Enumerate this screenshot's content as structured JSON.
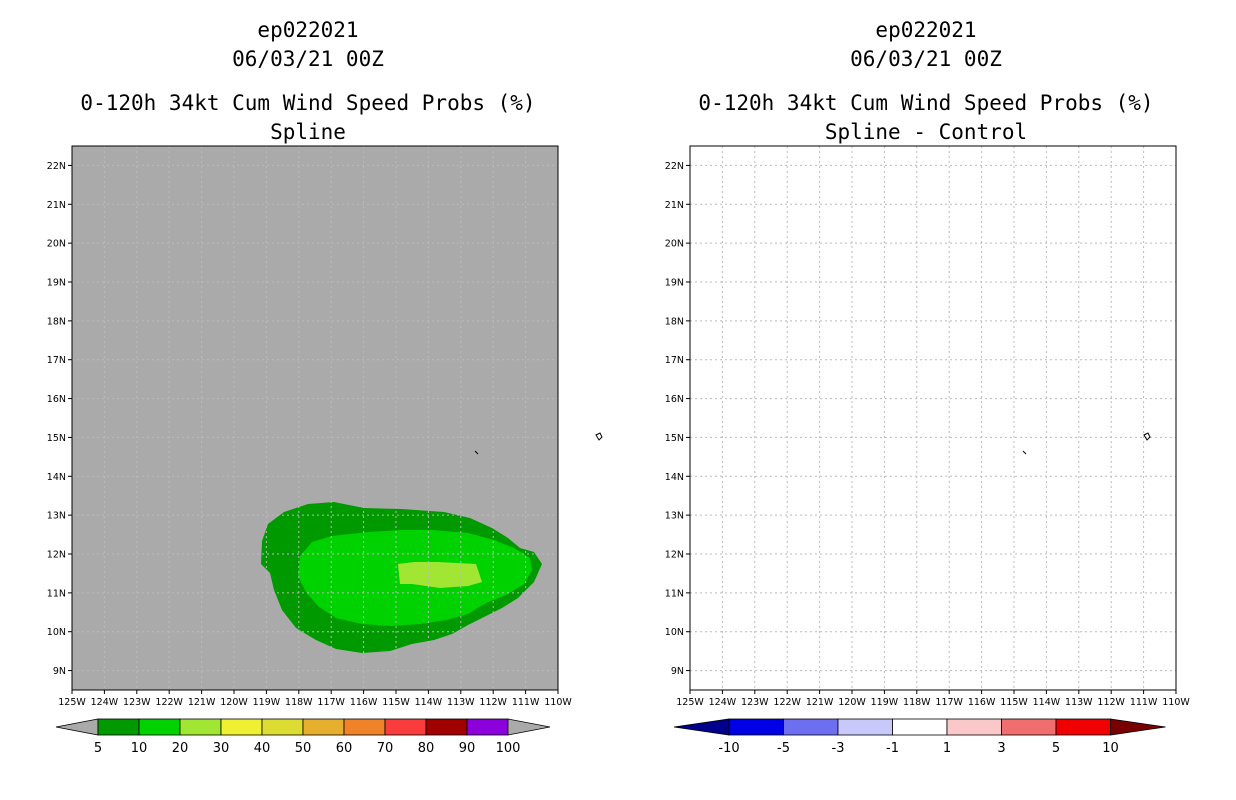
{
  "left_panel": {
    "title_lines": [
      "ep022021",
      "06/03/21 00Z",
      "0-120h 34kt Cum Wind Speed Probs (%)",
      "Spline"
    ]
  },
  "right_panel": {
    "title_lines": [
      "ep022021",
      "06/03/21 00Z",
      "0-120h 34kt Cum Wind Speed Probs (%)",
      "Spline - Control"
    ]
  },
  "map_extent": {
    "lon_west": -125,
    "lon_east": -110,
    "lat_south": 8.5,
    "lat_north": 22.5
  },
  "lat_ticks": [
    "9N",
    "10N",
    "11N",
    "12N",
    "13N",
    "14N",
    "15N",
    "16N",
    "17N",
    "18N",
    "19N",
    "20N",
    "21N",
    "22N"
  ],
  "lat_values": [
    9,
    10,
    11,
    12,
    13,
    14,
    15,
    16,
    17,
    18,
    19,
    20,
    21,
    22
  ],
  "lon_ticks": [
    "125W",
    "124W",
    "123W",
    "122W",
    "121W",
    "120W",
    "119W",
    "118W",
    "117W",
    "116W",
    "115W",
    "114W",
    "113W",
    "112W",
    "111W",
    "110W"
  ],
  "lon_values": [
    -125,
    -124,
    -123,
    -122,
    -121,
    -120,
    -119,
    -118,
    -117,
    -116,
    -115,
    -114,
    -113,
    -112,
    -111,
    -110
  ],
  "colors": {
    "background_grey": "#aaaaaa",
    "contour_5": "#009a00",
    "contour_10": "#00d200",
    "contour_20": "#a0e632"
  },
  "left_colorbar": {
    "colors": [
      "#009a00",
      "#00d200",
      "#a0e632",
      "#f0f032",
      "#dcdc32",
      "#e6af2d",
      "#f08228",
      "#fa3c3c",
      "#a00000",
      "#8c00dc"
    ],
    "labels": [
      "5",
      "10",
      "20",
      "30",
      "40",
      "50",
      "60",
      "70",
      "80",
      "90",
      "100"
    ],
    "end_color": "#aaaaaa"
  },
  "right_colorbar": {
    "colors": [
      "#0000e6",
      "#6e6ef0",
      "#c8c8fa",
      "#ffffff",
      "#fac8c8",
      "#f06e6e",
      "#f00000"
    ],
    "labels": [
      "-10",
      "-5",
      "-3",
      "-1",
      "1",
      "3",
      "5",
      "10"
    ],
    "low_end_color": "#00008c",
    "high_end_color": "#780000"
  }
}
